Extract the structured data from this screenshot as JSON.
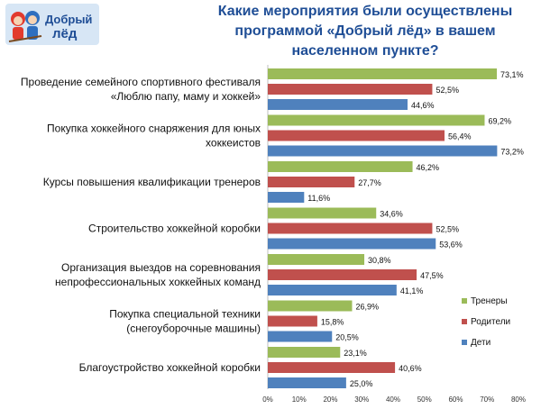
{
  "logo": {
    "line1": "Добрый",
    "line2": "лёд"
  },
  "chart_data": {
    "type": "bar",
    "orientation": "horizontal",
    "title": "Какие мероприятия были осуществлены программой «Добрый лёд» в вашем населенном пункте?",
    "title_lines": [
      "Какие мероприятия были осуществлены",
      "программой «Добрый лёд» в вашем",
      "населенном пункте?"
    ],
    "xlim": [
      0,
      80
    ],
    "x_ticks": [
      "0%",
      "10%",
      "20%",
      "30%",
      "40%",
      "50%",
      "60%",
      "70%",
      "80%"
    ],
    "categories": [
      [
        "Проведение семейного спортивного фестиваля",
        "«Люблю папу, маму и хоккей»"
      ],
      [
        "Покупка хоккейного снаряжения для юных",
        "хоккеистов"
      ],
      [
        "Курсы повышения квалификации тренеров"
      ],
      [
        "Строительство хоккейной коробки"
      ],
      [
        "Организация выездов на соревнования",
        "непрофессиональных хоккейных команд"
      ],
      [
        "Покупка специальной техники",
        "(снегоуборочные машины)"
      ],
      [
        "Благоустройство хоккейной коробки"
      ]
    ],
    "series": [
      {
        "name": "Тренеры",
        "color": "#9bbb59",
        "values": [
          73.1,
          69.2,
          46.2,
          34.6,
          30.8,
          26.9,
          23.1
        ],
        "labels": [
          "73,1%",
          "69,2%",
          "46,2%",
          "34,6%",
          "30,8%",
          "26,9%",
          "23,1%"
        ]
      },
      {
        "name": "Родители",
        "color": "#c0504d",
        "values": [
          52.5,
          56.4,
          27.7,
          52.5,
          47.5,
          15.8,
          40.6
        ],
        "labels": [
          "52,5%",
          "56,4%",
          "27,7%",
          "52,5%",
          "47,5%",
          "15,8%",
          "40,6%"
        ]
      },
      {
        "name": "Дети",
        "color": "#4f81bd",
        "values": [
          44.6,
          73.2,
          11.6,
          53.6,
          41.1,
          20.5,
          25.0
        ],
        "labels": [
          "44,6%",
          "73,2%",
          "11,6%",
          "53,6%",
          "41,1%",
          "20,5%",
          "25,0%"
        ]
      }
    ],
    "legend_position": "right",
    "grid": false
  }
}
